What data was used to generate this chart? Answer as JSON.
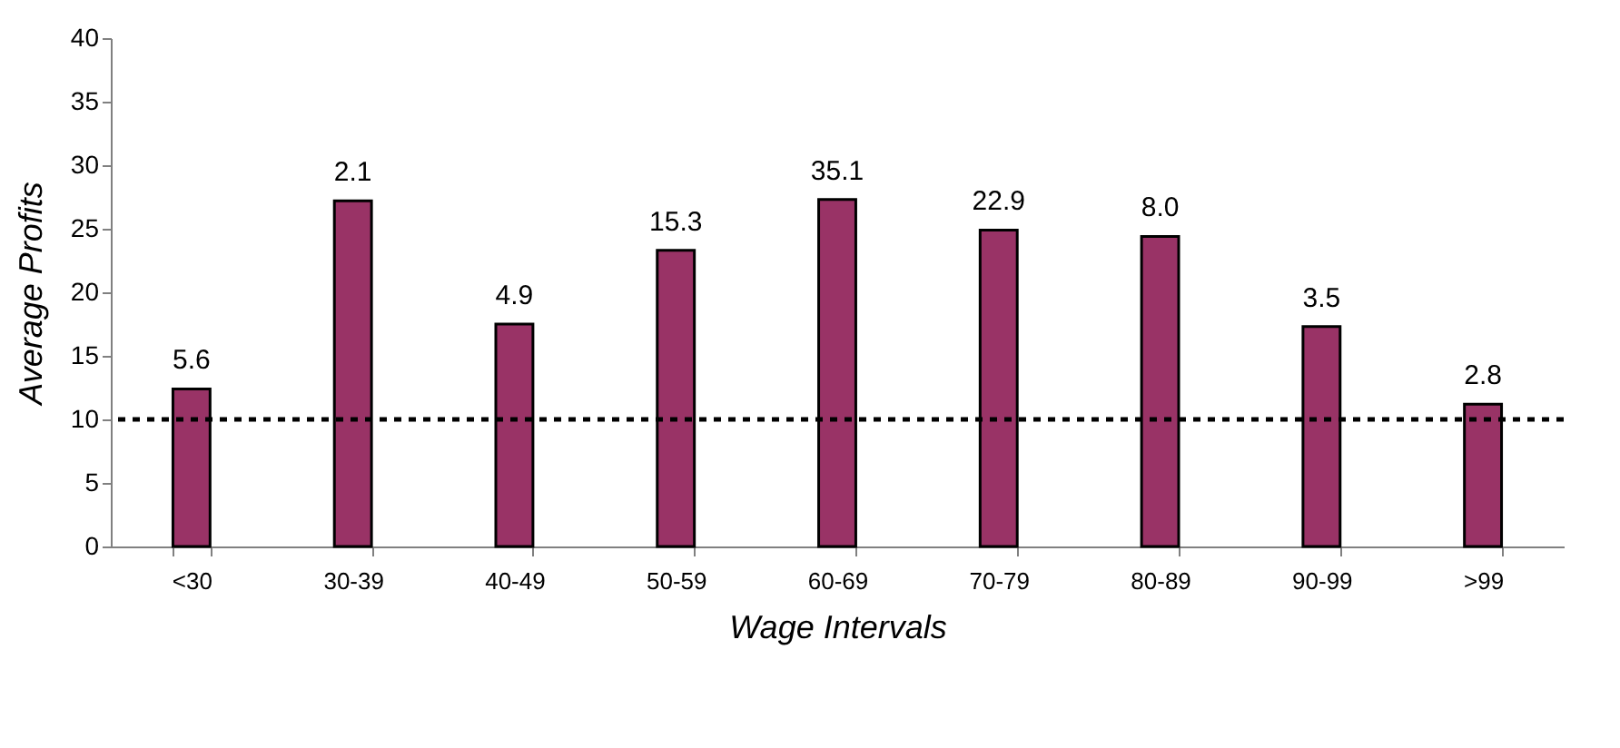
{
  "chart_data": {
    "type": "bar",
    "xlabel": "Wage Intervals",
    "ylabel": "Average  Profits",
    "categories": [
      "<30",
      "30-39",
      "40-49",
      "50-59",
      "60-69",
      "70-79",
      "80-89",
      "90-99",
      ">99"
    ],
    "values": [
      12.4,
      27.2,
      17.5,
      23.3,
      27.3,
      24.9,
      24.4,
      17.3,
      11.2
    ],
    "annotations": [
      {
        "text": "5.6",
        "x": "<30",
        "y": 12.4
      },
      {
        "text": "2.1",
        "x": "30-39",
        "y": 27.2
      },
      {
        "text": "4.9",
        "x": "40-49",
        "y": 17.5
      },
      {
        "text": "15.3",
        "x": "50-59",
        "y": 23.3
      },
      {
        "text": "35.1",
        "x": "60-69",
        "y": 27.3
      },
      {
        "text": "22.9",
        "x": "70-79",
        "y": 24.9
      },
      {
        "text": "8.0",
        "x": "80-89",
        "y": 24.4
      },
      {
        "text": "3.5",
        "x": "90-99",
        "y": 17.3
      },
      {
        "text": "2.8",
        "x": ">99",
        "y": 11.2
      }
    ],
    "color": "#993366",
    "ylim": [
      0,
      40
    ],
    "yticks": [
      0,
      5,
      10,
      15,
      20,
      25,
      30,
      35,
      40
    ],
    "ref_lines": [
      {
        "axis": "y",
        "value": 10,
        "color": "#000000",
        "line_style": "dashed"
      }
    ],
    "grid": false
  }
}
